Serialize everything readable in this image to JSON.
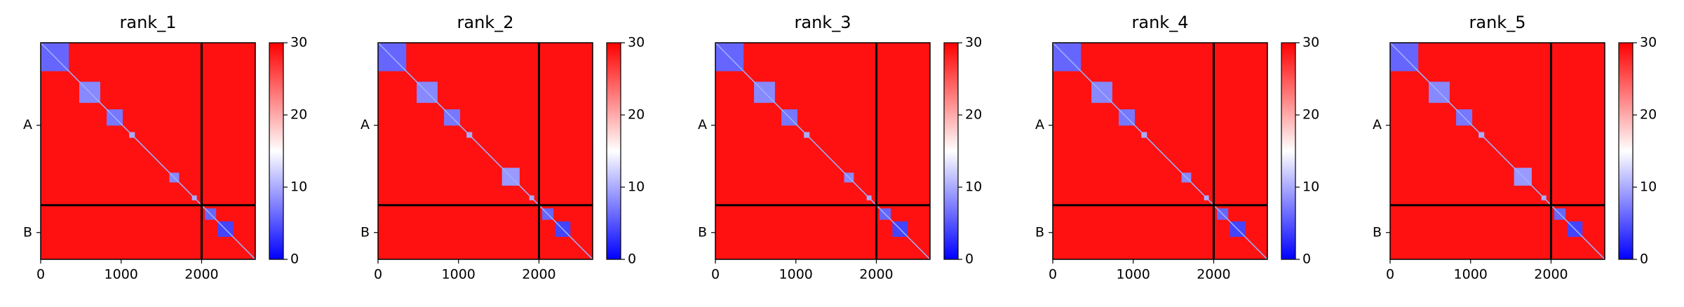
{
  "chart_data": [
    {
      "type": "heatmap",
      "title": "rank_1",
      "xlim": [
        0,
        2667
      ],
      "ylim": [
        0,
        2667
      ],
      "xticks": [
        0,
        1000,
        2000
      ],
      "yticks": [
        {
          "value": 1016,
          "label": "A"
        },
        {
          "value": 2337,
          "label": "B"
        }
      ],
      "chain_breaks": [
        2000
      ],
      "clim": [
        0,
        30
      ],
      "cticks": [
        0,
        10,
        20,
        30
      ],
      "colormap": "bwr",
      "off_diagonal_value": 29,
      "blocks": [
        {
          "start": 0,
          "end": 350,
          "value": 6
        },
        {
          "start": 480,
          "end": 740,
          "value": 8
        },
        {
          "start": 820,
          "end": 1020,
          "value": 7
        },
        {
          "start": 1100,
          "end": 1170,
          "value": 10
        },
        {
          "start": 1600,
          "end": 1720,
          "value": 8
        },
        {
          "start": 1880,
          "end": 1940,
          "value": 10
        },
        {
          "start": 2040,
          "end": 2180,
          "value": 6
        },
        {
          "start": 2200,
          "end": 2390,
          "value": 4
        }
      ]
    },
    {
      "type": "heatmap",
      "title": "rank_2",
      "xlim": [
        0,
        2667
      ],
      "ylim": [
        0,
        2667
      ],
      "xticks": [
        0,
        1000,
        2000
      ],
      "yticks": [
        {
          "value": 1016,
          "label": "A"
        },
        {
          "value": 2337,
          "label": "B"
        }
      ],
      "chain_breaks": [
        2000
      ],
      "clim": [
        0,
        30
      ],
      "cticks": [
        0,
        10,
        20,
        30
      ],
      "colormap": "bwr",
      "off_diagonal_value": 29,
      "blocks": [
        {
          "start": 0,
          "end": 350,
          "value": 6
        },
        {
          "start": 480,
          "end": 740,
          "value": 8
        },
        {
          "start": 820,
          "end": 1020,
          "value": 7
        },
        {
          "start": 1100,
          "end": 1170,
          "value": 10
        },
        {
          "start": 1540,
          "end": 1760,
          "value": 9
        },
        {
          "start": 1880,
          "end": 1940,
          "value": 10
        },
        {
          "start": 2040,
          "end": 2180,
          "value": 6
        },
        {
          "start": 2200,
          "end": 2390,
          "value": 4
        }
      ]
    },
    {
      "type": "heatmap",
      "title": "rank_3",
      "xlim": [
        0,
        2667
      ],
      "ylim": [
        0,
        2667
      ],
      "xticks": [
        0,
        1000,
        2000
      ],
      "yticks": [
        {
          "value": 1016,
          "label": "A"
        },
        {
          "value": 2337,
          "label": "B"
        }
      ],
      "chain_breaks": [
        2000
      ],
      "clim": [
        0,
        30
      ],
      "cticks": [
        0,
        10,
        20,
        30
      ],
      "colormap": "bwr",
      "off_diagonal_value": 29,
      "blocks": [
        {
          "start": 0,
          "end": 350,
          "value": 6
        },
        {
          "start": 480,
          "end": 740,
          "value": 8
        },
        {
          "start": 820,
          "end": 1020,
          "value": 7
        },
        {
          "start": 1100,
          "end": 1170,
          "value": 10
        },
        {
          "start": 1600,
          "end": 1720,
          "value": 8
        },
        {
          "start": 1880,
          "end": 1940,
          "value": 10
        },
        {
          "start": 2040,
          "end": 2180,
          "value": 6
        },
        {
          "start": 2200,
          "end": 2390,
          "value": 4
        }
      ]
    },
    {
      "type": "heatmap",
      "title": "rank_4",
      "xlim": [
        0,
        2667
      ],
      "ylim": [
        0,
        2667
      ],
      "xticks": [
        0,
        1000,
        2000
      ],
      "yticks": [
        {
          "value": 1016,
          "label": "A"
        },
        {
          "value": 2337,
          "label": "B"
        }
      ],
      "chain_breaks": [
        2000
      ],
      "clim": [
        0,
        30
      ],
      "cticks": [
        0,
        10,
        20,
        30
      ],
      "colormap": "bwr",
      "off_diagonal_value": 29,
      "blocks": [
        {
          "start": 0,
          "end": 350,
          "value": 6
        },
        {
          "start": 480,
          "end": 740,
          "value": 8
        },
        {
          "start": 820,
          "end": 1020,
          "value": 7
        },
        {
          "start": 1100,
          "end": 1170,
          "value": 10
        },
        {
          "start": 1600,
          "end": 1720,
          "value": 8
        },
        {
          "start": 1880,
          "end": 1940,
          "value": 10
        },
        {
          "start": 2040,
          "end": 2180,
          "value": 6
        },
        {
          "start": 2200,
          "end": 2390,
          "value": 4
        }
      ]
    },
    {
      "type": "heatmap",
      "title": "rank_5",
      "xlim": [
        0,
        2667
      ],
      "ylim": [
        0,
        2667
      ],
      "xticks": [
        0,
        1000,
        2000
      ],
      "yticks": [
        {
          "value": 1016,
          "label": "A"
        },
        {
          "value": 2337,
          "label": "B"
        }
      ],
      "chain_breaks": [
        2000
      ],
      "clim": [
        0,
        30
      ],
      "cticks": [
        0,
        10,
        20,
        30
      ],
      "colormap": "bwr",
      "off_diagonal_value": 29,
      "blocks": [
        {
          "start": 0,
          "end": 350,
          "value": 6
        },
        {
          "start": 480,
          "end": 740,
          "value": 8
        },
        {
          "start": 820,
          "end": 1020,
          "value": 7
        },
        {
          "start": 1100,
          "end": 1170,
          "value": 10
        },
        {
          "start": 1540,
          "end": 1760,
          "value": 9
        },
        {
          "start": 1880,
          "end": 1940,
          "value": 10
        },
        {
          "start": 2040,
          "end": 2180,
          "value": 6
        },
        {
          "start": 2200,
          "end": 2390,
          "value": 4
        }
      ]
    }
  ]
}
